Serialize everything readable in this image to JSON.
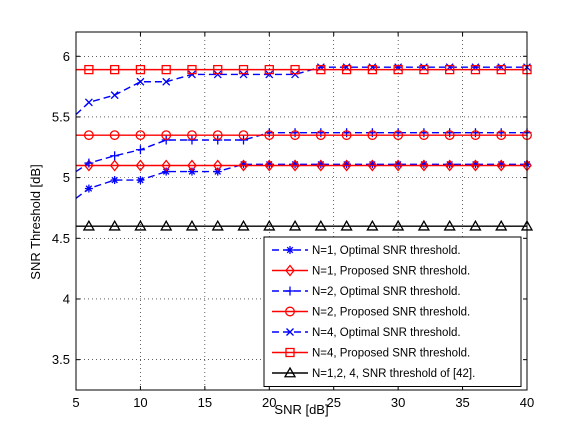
{
  "chart_data": {
    "type": "line",
    "xlabel": "SNR [dB]",
    "ylabel": "SNR Threshold [dB]",
    "xlim": [
      5,
      40
    ],
    "ylim": [
      3.25,
      6.2
    ],
    "xticks": [
      5,
      10,
      15,
      20,
      25,
      30,
      35,
      40
    ],
    "yticks": [
      3.5,
      4,
      4.5,
      5,
      5.5,
      6
    ],
    "xtick_labels": [
      "5",
      "10",
      "15",
      "20",
      "25",
      "30",
      "35",
      "40"
    ],
    "ytick_labels": [
      "3.5",
      "4",
      "4.5",
      "5",
      "5.5",
      "6"
    ],
    "grid": true,
    "legend_position": "lower-right",
    "series": [
      {
        "name": "N=1, Optimal SNR threshold.",
        "color": "#0000ff",
        "dash": "dashed",
        "marker": "asterisk",
        "x": [
          5,
          6,
          8,
          10,
          12,
          14,
          16,
          18,
          20,
          22,
          24,
          26,
          28,
          30,
          32,
          34,
          36,
          38,
          40
        ],
        "y": [
          4.83,
          4.91,
          4.98,
          4.98,
          5.05,
          5.05,
          5.05,
          5.11,
          5.11,
          5.11,
          5.11,
          5.11,
          5.11,
          5.11,
          5.11,
          5.11,
          5.11,
          5.11,
          5.11
        ]
      },
      {
        "name": "N=1, Proposed SNR threshold.",
        "color": "#ff0000",
        "dash": "solid",
        "marker": "diamond",
        "x": [
          5,
          6,
          8,
          10,
          12,
          14,
          16,
          18,
          20,
          22,
          24,
          26,
          28,
          30,
          32,
          34,
          36,
          38,
          40
        ],
        "y": [
          5.1,
          5.1,
          5.1,
          5.1,
          5.1,
          5.1,
          5.1,
          5.1,
          5.1,
          5.1,
          5.1,
          5.1,
          5.1,
          5.1,
          5.1,
          5.1,
          5.1,
          5.1,
          5.1
        ]
      },
      {
        "name": "N=2, Optimal SNR threshold.",
        "color": "#0000ff",
        "dash": "dashed",
        "marker": "plus",
        "x": [
          5,
          6,
          8,
          10,
          12,
          14,
          16,
          18,
          20,
          22,
          24,
          26,
          28,
          30,
          32,
          34,
          36,
          38,
          40
        ],
        "y": [
          5.05,
          5.12,
          5.18,
          5.23,
          5.31,
          5.31,
          5.31,
          5.31,
          5.37,
          5.37,
          5.37,
          5.37,
          5.37,
          5.37,
          5.37,
          5.37,
          5.37,
          5.37,
          5.37
        ]
      },
      {
        "name": "N=2, Proposed SNR threshold.",
        "color": "#ff0000",
        "dash": "solid",
        "marker": "circle",
        "x": [
          5,
          6,
          8,
          10,
          12,
          14,
          16,
          18,
          20,
          22,
          24,
          26,
          28,
          30,
          32,
          34,
          36,
          38,
          40
        ],
        "y": [
          5.35,
          5.35,
          5.35,
          5.35,
          5.35,
          5.35,
          5.35,
          5.35,
          5.35,
          5.35,
          5.35,
          5.35,
          5.35,
          5.35,
          5.35,
          5.35,
          5.35,
          5.35,
          5.35
        ]
      },
      {
        "name": "N=4, Optimal  SNR threshold.",
        "color": "#0000ff",
        "dash": "dashed",
        "marker": "cross",
        "x": [
          5,
          6,
          8,
          10,
          12,
          14,
          16,
          18,
          20,
          22,
          24,
          26,
          28,
          30,
          32,
          34,
          36,
          38,
          40
        ],
        "y": [
          5.52,
          5.62,
          5.68,
          5.79,
          5.79,
          5.85,
          5.85,
          5.85,
          5.85,
          5.85,
          5.91,
          5.91,
          5.91,
          5.91,
          5.91,
          5.91,
          5.91,
          5.91,
          5.91
        ]
      },
      {
        "name": "N=4, Proposed SNR threshold.",
        "color": "#ff0000",
        "dash": "solid",
        "marker": "square",
        "x": [
          5,
          6,
          8,
          10,
          12,
          14,
          16,
          18,
          20,
          22,
          24,
          26,
          28,
          30,
          32,
          34,
          36,
          38,
          40
        ],
        "y": [
          5.89,
          5.89,
          5.89,
          5.89,
          5.89,
          5.89,
          5.89,
          5.89,
          5.89,
          5.89,
          5.89,
          5.89,
          5.89,
          5.89,
          5.89,
          5.89,
          5.89,
          5.89,
          5.89
        ]
      },
      {
        "name": "N=1,2, 4, SNR threshold of [42].",
        "color": "#000000",
        "dash": "solid",
        "marker": "triangle",
        "x": [
          5,
          6,
          8,
          10,
          12,
          14,
          16,
          18,
          20,
          22,
          24,
          26,
          28,
          30,
          32,
          34,
          36,
          38,
          40
        ],
        "y": [
          4.6,
          4.6,
          4.6,
          4.6,
          4.6,
          4.6,
          4.6,
          4.6,
          4.6,
          4.6,
          4.6,
          4.6,
          4.6,
          4.6,
          4.6,
          4.6,
          4.6,
          4.6,
          4.6
        ]
      }
    ]
  }
}
